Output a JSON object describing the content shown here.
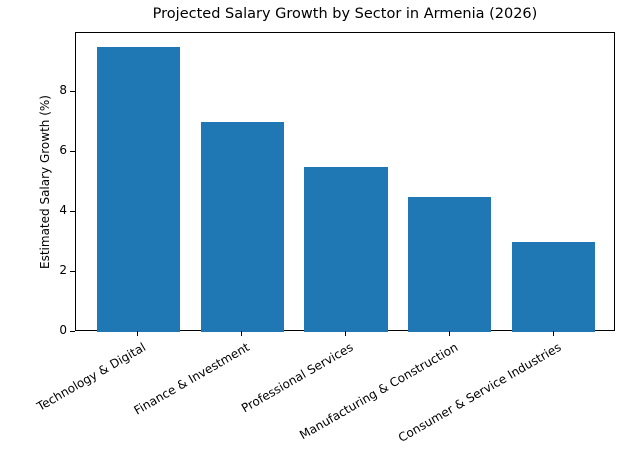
{
  "chart_data": {
    "type": "bar",
    "title": "Projected Salary Growth by Sector in Armenia (2026)",
    "xlabel": "",
    "ylabel": "Estimated Salary Growth (%)",
    "categories": [
      "Technology & Digital",
      "Finance & Investment",
      "Professional Services",
      "Manufacturing & Construction",
      "Consumer & Service Industries"
    ],
    "values": [
      9.5,
      7.0,
      5.5,
      4.5,
      3.0
    ],
    "ylim": [
      0,
      9.975
    ],
    "yticks": [
      0,
      2,
      4,
      6,
      8
    ],
    "grid": false,
    "legend": null,
    "bar_color": "#1f77b4",
    "xtick_rotation": 30
  }
}
